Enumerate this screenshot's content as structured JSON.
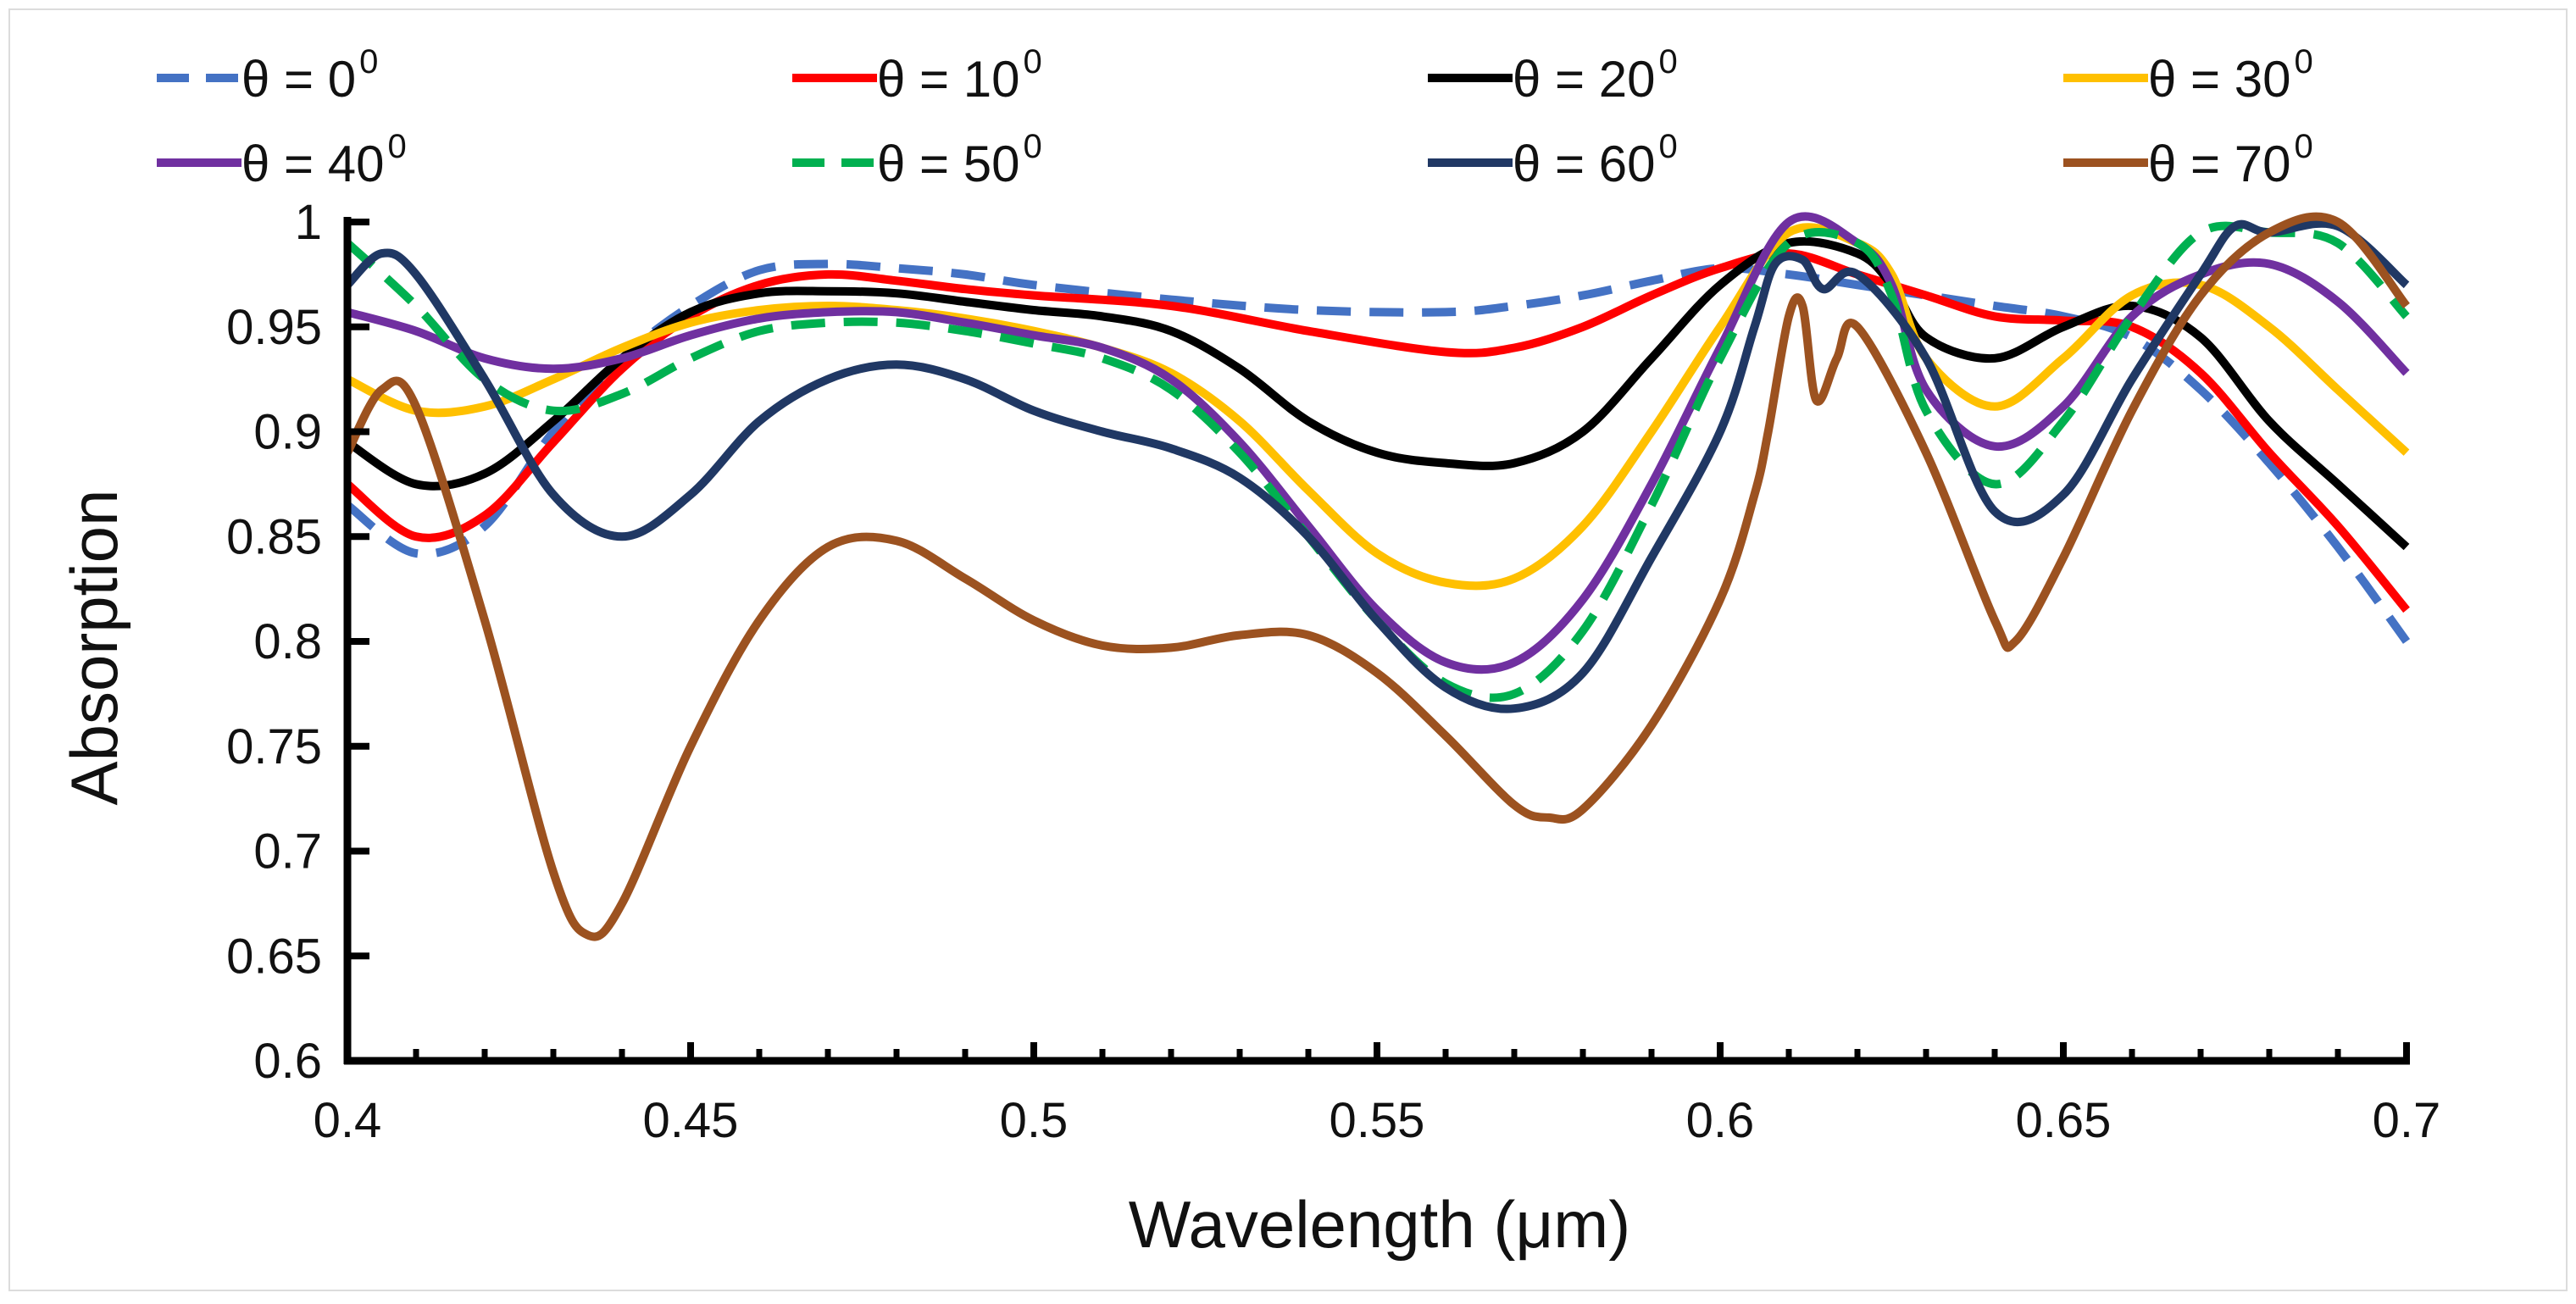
{
  "chart_data": {
    "type": "line",
    "title": "",
    "xlabel": "Wavelength (μm)",
    "ylabel": "Absorption",
    "xlim": [
      0.4,
      0.7
    ],
    "ylim": [
      0.6,
      1.0
    ],
    "x_ticks": [
      "0.4",
      "0.45",
      "0.5",
      "0.55",
      "0.6",
      "0.65",
      "0.7"
    ],
    "y_ticks": [
      "0.6",
      "0.65",
      "0.7",
      "0.75",
      "0.8",
      "0.85",
      "0.9",
      "0.95",
      "1"
    ],
    "legend_position": "top",
    "grid": false,
    "series": [
      {
        "name": "θ = 0",
        "sup": "0",
        "color": "#4472C4",
        "dashed": true,
        "points": [
          [
            0.4,
            0.865
          ],
          [
            0.41,
            0.842
          ],
          [
            0.42,
            0.855
          ],
          [
            0.43,
            0.9
          ],
          [
            0.44,
            0.935
          ],
          [
            0.45,
            0.96
          ],
          [
            0.46,
            0.977
          ],
          [
            0.47,
            0.98
          ],
          [
            0.48,
            0.978
          ],
          [
            0.49,
            0.975
          ],
          [
            0.5,
            0.97
          ],
          [
            0.52,
            0.963
          ],
          [
            0.54,
            0.958
          ],
          [
            0.56,
            0.957
          ],
          [
            0.57,
            0.96
          ],
          [
            0.58,
            0.965
          ],
          [
            0.59,
            0.972
          ],
          [
            0.6,
            0.978
          ],
          [
            0.61,
            0.975
          ],
          [
            0.62,
            0.97
          ],
          [
            0.63,
            0.965
          ],
          [
            0.64,
            0.96
          ],
          [
            0.65,
            0.955
          ],
          [
            0.66,
            0.945
          ],
          [
            0.67,
            0.92
          ],
          [
            0.68,
            0.885
          ],
          [
            0.69,
            0.845
          ],
          [
            0.7,
            0.8
          ]
        ]
      },
      {
        "name": "θ = 10",
        "sup": "0",
        "color": "#FF0000",
        "dashed": false,
        "points": [
          [
            0.4,
            0.875
          ],
          [
            0.41,
            0.85
          ],
          [
            0.42,
            0.86
          ],
          [
            0.43,
            0.895
          ],
          [
            0.44,
            0.93
          ],
          [
            0.45,
            0.955
          ],
          [
            0.46,
            0.97
          ],
          [
            0.47,
            0.975
          ],
          [
            0.48,
            0.972
          ],
          [
            0.49,
            0.968
          ],
          [
            0.5,
            0.965
          ],
          [
            0.52,
            0.96
          ],
          [
            0.54,
            0.948
          ],
          [
            0.56,
            0.938
          ],
          [
            0.57,
            0.94
          ],
          [
            0.58,
            0.95
          ],
          [
            0.59,
            0.965
          ],
          [
            0.6,
            0.978
          ],
          [
            0.61,
            0.985
          ],
          [
            0.62,
            0.975
          ],
          [
            0.63,
            0.965
          ],
          [
            0.64,
            0.955
          ],
          [
            0.65,
            0.953
          ],
          [
            0.66,
            0.95
          ],
          [
            0.67,
            0.928
          ],
          [
            0.68,
            0.89
          ],
          [
            0.69,
            0.855
          ],
          [
            0.7,
            0.815
          ]
        ]
      },
      {
        "name": "θ = 20",
        "sup": "0",
        "color": "#000000",
        "dashed": false,
        "points": [
          [
            0.4,
            0.895
          ],
          [
            0.41,
            0.875
          ],
          [
            0.42,
            0.88
          ],
          [
            0.43,
            0.905
          ],
          [
            0.44,
            0.935
          ],
          [
            0.45,
            0.957
          ],
          [
            0.46,
            0.966
          ],
          [
            0.47,
            0.967
          ],
          [
            0.48,
            0.966
          ],
          [
            0.49,
            0.962
          ],
          [
            0.5,
            0.958
          ],
          [
            0.51,
            0.955
          ],
          [
            0.52,
            0.948
          ],
          [
            0.53,
            0.93
          ],
          [
            0.54,
            0.905
          ],
          [
            0.55,
            0.89
          ],
          [
            0.56,
            0.885
          ],
          [
            0.57,
            0.885
          ],
          [
            0.58,
            0.9
          ],
          [
            0.59,
            0.935
          ],
          [
            0.6,
            0.97
          ],
          [
            0.61,
            0.99
          ],
          [
            0.62,
            0.985
          ],
          [
            0.625,
            0.97
          ],
          [
            0.63,
            0.945
          ],
          [
            0.64,
            0.935
          ],
          [
            0.65,
            0.95
          ],
          [
            0.66,
            0.96
          ],
          [
            0.67,
            0.945
          ],
          [
            0.68,
            0.905
          ],
          [
            0.69,
            0.875
          ],
          [
            0.7,
            0.845
          ]
        ]
      },
      {
        "name": "θ = 30",
        "sup": "0",
        "color": "#FFC000",
        "dashed": false,
        "points": [
          [
            0.4,
            0.925
          ],
          [
            0.41,
            0.91
          ],
          [
            0.42,
            0.912
          ],
          [
            0.43,
            0.925
          ],
          [
            0.44,
            0.94
          ],
          [
            0.45,
            0.952
          ],
          [
            0.46,
            0.958
          ],
          [
            0.47,
            0.96
          ],
          [
            0.48,
            0.958
          ],
          [
            0.49,
            0.954
          ],
          [
            0.5,
            0.948
          ],
          [
            0.51,
            0.94
          ],
          [
            0.52,
            0.928
          ],
          [
            0.53,
            0.905
          ],
          [
            0.54,
            0.872
          ],
          [
            0.55,
            0.842
          ],
          [
            0.56,
            0.828
          ],
          [
            0.57,
            0.83
          ],
          [
            0.58,
            0.855
          ],
          [
            0.59,
            0.9
          ],
          [
            0.6,
            0.95
          ],
          [
            0.61,
            0.995
          ],
          [
            0.62,
            0.99
          ],
          [
            0.625,
            0.975
          ],
          [
            0.63,
            0.935
          ],
          [
            0.64,
            0.912
          ],
          [
            0.65,
            0.935
          ],
          [
            0.66,
            0.965
          ],
          [
            0.67,
            0.97
          ],
          [
            0.68,
            0.95
          ],
          [
            0.69,
            0.92
          ],
          [
            0.7,
            0.89
          ]
        ]
      },
      {
        "name": "θ = 40",
        "sup": "0",
        "color": "#7030A0",
        "dashed": false,
        "points": [
          [
            0.4,
            0.957
          ],
          [
            0.41,
            0.948
          ],
          [
            0.42,
            0.935
          ],
          [
            0.43,
            0.93
          ],
          [
            0.44,
            0.935
          ],
          [
            0.45,
            0.946
          ],
          [
            0.46,
            0.954
          ],
          [
            0.47,
            0.957
          ],
          [
            0.48,
            0.957
          ],
          [
            0.49,
            0.952
          ],
          [
            0.5,
            0.946
          ],
          [
            0.51,
            0.94
          ],
          [
            0.52,
            0.925
          ],
          [
            0.53,
            0.895
          ],
          [
            0.54,
            0.855
          ],
          [
            0.55,
            0.815
          ],
          [
            0.56,
            0.79
          ],
          [
            0.57,
            0.79
          ],
          [
            0.58,
            0.82
          ],
          [
            0.59,
            0.875
          ],
          [
            0.6,
            0.94
          ],
          [
            0.61,
            1.0
          ],
          [
            0.62,
            0.99
          ],
          [
            0.625,
            0.97
          ],
          [
            0.63,
            0.92
          ],
          [
            0.64,
            0.893
          ],
          [
            0.65,
            0.912
          ],
          [
            0.66,
            0.955
          ],
          [
            0.67,
            0.975
          ],
          [
            0.68,
            0.98
          ],
          [
            0.69,
            0.962
          ],
          [
            0.7,
            0.928
          ]
        ]
      },
      {
        "name": "θ = 50",
        "sup": "0",
        "color": "#00B050",
        "dashed": true,
        "points": [
          [
            0.4,
            0.99
          ],
          [
            0.41,
            0.96
          ],
          [
            0.42,
            0.925
          ],
          [
            0.43,
            0.91
          ],
          [
            0.44,
            0.918
          ],
          [
            0.45,
            0.935
          ],
          [
            0.46,
            0.948
          ],
          [
            0.47,
            0.952
          ],
          [
            0.48,
            0.952
          ],
          [
            0.49,
            0.948
          ],
          [
            0.5,
            0.942
          ],
          [
            0.51,
            0.935
          ],
          [
            0.52,
            0.92
          ],
          [
            0.53,
            0.89
          ],
          [
            0.54,
            0.85
          ],
          [
            0.55,
            0.81
          ],
          [
            0.56,
            0.78
          ],
          [
            0.57,
            0.775
          ],
          [
            0.58,
            0.805
          ],
          [
            0.59,
            0.865
          ],
          [
            0.6,
            0.935
          ],
          [
            0.61,
            0.99
          ],
          [
            0.62,
            0.99
          ],
          [
            0.625,
            0.965
          ],
          [
            0.63,
            0.91
          ],
          [
            0.64,
            0.875
          ],
          [
            0.65,
            0.905
          ],
          [
            0.66,
            0.955
          ],
          [
            0.67,
            0.995
          ],
          [
            0.68,
            0.995
          ],
          [
            0.69,
            0.99
          ],
          [
            0.7,
            0.955
          ]
        ]
      },
      {
        "name": "θ = 60",
        "sup": "0",
        "color": "#203864",
        "dashed": false,
        "points": [
          [
            0.4,
            0.97
          ],
          [
            0.405,
            0.985
          ],
          [
            0.41,
            0.975
          ],
          [
            0.42,
            0.925
          ],
          [
            0.43,
            0.87
          ],
          [
            0.44,
            0.85
          ],
          [
            0.45,
            0.87
          ],
          [
            0.46,
            0.905
          ],
          [
            0.47,
            0.925
          ],
          [
            0.48,
            0.932
          ],
          [
            0.49,
            0.925
          ],
          [
            0.5,
            0.91
          ],
          [
            0.51,
            0.9
          ],
          [
            0.52,
            0.892
          ],
          [
            0.53,
            0.878
          ],
          [
            0.54,
            0.85
          ],
          [
            0.55,
            0.81
          ],
          [
            0.56,
            0.778
          ],
          [
            0.57,
            0.768
          ],
          [
            0.58,
            0.785
          ],
          [
            0.59,
            0.84
          ],
          [
            0.6,
            0.9
          ],
          [
            0.605,
            0.95
          ],
          [
            0.608,
            0.98
          ],
          [
            0.612,
            0.982
          ],
          [
            0.615,
            0.968
          ],
          [
            0.62,
            0.975
          ],
          [
            0.63,
            0.935
          ],
          [
            0.64,
            0.862
          ],
          [
            0.65,
            0.87
          ],
          [
            0.66,
            0.925
          ],
          [
            0.67,
            0.975
          ],
          [
            0.675,
            0.998
          ],
          [
            0.68,
            0.995
          ],
          [
            0.69,
            0.998
          ],
          [
            0.7,
            0.97
          ]
        ]
      },
      {
        "name": "θ = 70",
        "sup": "0",
        "color": "#9C5220",
        "dashed": false,
        "points": [
          [
            0.4,
            0.89
          ],
          [
            0.405,
            0.92
          ],
          [
            0.41,
            0.912
          ],
          [
            0.42,
            0.81
          ],
          [
            0.43,
            0.69
          ],
          [
            0.435,
            0.66
          ],
          [
            0.44,
            0.675
          ],
          [
            0.45,
            0.75
          ],
          [
            0.46,
            0.81
          ],
          [
            0.47,
            0.845
          ],
          [
            0.48,
            0.848
          ],
          [
            0.49,
            0.83
          ],
          [
            0.5,
            0.81
          ],
          [
            0.51,
            0.798
          ],
          [
            0.52,
            0.797
          ],
          [
            0.53,
            0.803
          ],
          [
            0.54,
            0.803
          ],
          [
            0.55,
            0.785
          ],
          [
            0.56,
            0.755
          ],
          [
            0.57,
            0.722
          ],
          [
            0.575,
            0.716
          ],
          [
            0.58,
            0.72
          ],
          [
            0.59,
            0.76
          ],
          [
            0.6,
            0.82
          ],
          [
            0.605,
            0.87
          ],
          [
            0.607,
            0.9
          ],
          [
            0.61,
            0.955
          ],
          [
            0.612,
            0.96
          ],
          [
            0.614,
            0.915
          ],
          [
            0.617,
            0.935
          ],
          [
            0.62,
            0.95
          ],
          [
            0.63,
            0.89
          ],
          [
            0.64,
            0.81
          ],
          [
            0.643,
            0.8
          ],
          [
            0.65,
            0.84
          ],
          [
            0.66,
            0.91
          ],
          [
            0.67,
            0.965
          ],
          [
            0.68,
            0.995
          ],
          [
            0.69,
            1.0
          ],
          [
            0.7,
            0.96
          ]
        ]
      }
    ]
  }
}
